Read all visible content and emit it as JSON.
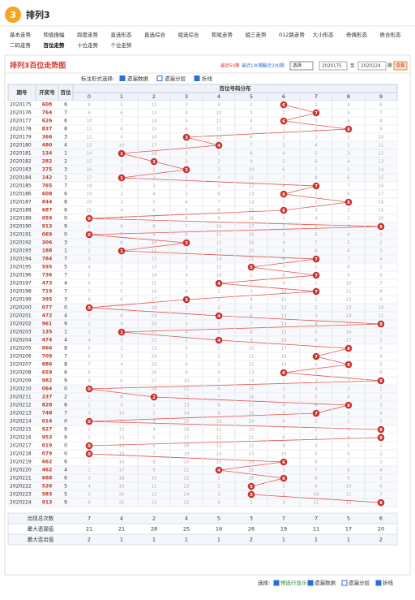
{
  "header": {
    "logo": "3",
    "title": "排列3"
  },
  "nav": [
    [
      "基本走势",
      "和值振幅",
      "跨度走势",
      "直选形态",
      "直选综合",
      "组选综合",
      "和尾走势",
      "组三走势",
      "012路走势",
      "大小形态",
      "奇偶形态",
      "质合形态"
    ],
    [
      "二码走势",
      "百位走势",
      "十位走势",
      "个位走势"
    ]
  ],
  "nav_active": "百位走势",
  "panel": {
    "title": "排列3百位走势图",
    "quick": [
      "最近50期",
      "最近100期",
      "最近200期"
    ],
    "select": "选择",
    "from": "2020175",
    "to_label": "至",
    "to": "2020224",
    "period_label": "期",
    "button": "查看",
    "mark_label": "标注形式选择:",
    "options": [
      "遗漏数据",
      "遗漏分层",
      "折线"
    ]
  },
  "table": {
    "headers": [
      "期号",
      "开奖号",
      "百位"
    ],
    "dist_title": "百位号码分布",
    "digits": [
      0,
      1,
      2,
      3,
      4,
      5,
      6,
      7,
      8,
      9
    ],
    "rows": [
      {
        "issue": "2020175",
        "draw": "608",
        "hundreds": 6,
        "miss": [
          8,
          5,
          12,
          3,
          9,
          2,
          null,
          1,
          4,
          6
        ]
      },
      {
        "issue": "2020176",
        "draw": "764",
        "hundreds": 7,
        "miss": [
          9,
          6,
          13,
          4,
          10,
          3,
          1,
          null,
          5,
          7
        ]
      },
      {
        "issue": "2020177",
        "draw": "626",
        "hundreds": 6,
        "miss": [
          10,
          7,
          14,
          5,
          11,
          4,
          null,
          1,
          6,
          8
        ]
      },
      {
        "issue": "2020178",
        "draw": "837",
        "hundreds": 8,
        "miss": [
          11,
          8,
          15,
          6,
          12,
          5,
          1,
          2,
          null,
          9
        ]
      },
      {
        "issue": "2020179",
        "draw": "366",
        "hundreds": 3,
        "miss": [
          12,
          9,
          16,
          null,
          13,
          6,
          2,
          3,
          1,
          10
        ]
      },
      {
        "issue": "2020180",
        "draw": "480",
        "hundreds": 4,
        "miss": [
          13,
          10,
          17,
          1,
          null,
          7,
          3,
          4,
          2,
          11
        ]
      },
      {
        "issue": "2020181",
        "draw": "134",
        "hundreds": 1,
        "miss": [
          14,
          null,
          18,
          2,
          1,
          8,
          4,
          5,
          3,
          12
        ]
      },
      {
        "issue": "2020182",
        "draw": "282",
        "hundreds": 2,
        "miss": [
          15,
          1,
          null,
          3,
          2,
          9,
          5,
          6,
          4,
          13
        ]
      },
      {
        "issue": "2020183",
        "draw": "375",
        "hundreds": 3,
        "miss": [
          16,
          2,
          1,
          null,
          3,
          10,
          6,
          7,
          5,
          14
        ]
      },
      {
        "issue": "2020184",
        "draw": "142",
        "hundreds": 1,
        "miss": [
          17,
          null,
          2,
          1,
          4,
          11,
          7,
          8,
          6,
          15
        ]
      },
      {
        "issue": "2020185",
        "draw": "765",
        "hundreds": 7,
        "miss": [
          18,
          1,
          3,
          2,
          5,
          12,
          8,
          null,
          7,
          16
        ]
      },
      {
        "issue": "2020186",
        "draw": "608",
        "hundreds": 6,
        "miss": [
          19,
          2,
          4,
          3,
          6,
          13,
          null,
          1,
          8,
          17
        ]
      },
      {
        "issue": "2020187",
        "draw": "844",
        "hundreds": 8,
        "miss": [
          20,
          3,
          5,
          4,
          7,
          14,
          1,
          2,
          null,
          18
        ]
      },
      {
        "issue": "2020188",
        "draw": "687",
        "hundreds": 6,
        "miss": [
          21,
          4,
          6,
          5,
          8,
          15,
          null,
          3,
          1,
          19
        ]
      },
      {
        "issue": "2020189",
        "draw": "059",
        "hundreds": 0,
        "miss": [
          null,
          5,
          7,
          6,
          9,
          16,
          1,
          4,
          2,
          20
        ]
      },
      {
        "issue": "2020190",
        "draw": "913",
        "hundreds": 9,
        "miss": [
          1,
          6,
          8,
          7,
          10,
          17,
          2,
          5,
          3,
          null
        ]
      },
      {
        "issue": "2020191",
        "draw": "069",
        "hundreds": 0,
        "miss": [
          null,
          7,
          9,
          8,
          11,
          18,
          3,
          6,
          4,
          1
        ]
      },
      {
        "issue": "2020192",
        "draw": "306",
        "hundreds": 3,
        "miss": [
          1,
          8,
          10,
          null,
          12,
          19,
          4,
          7,
          5,
          2
        ]
      },
      {
        "issue": "2020193",
        "draw": "188",
        "hundreds": 1,
        "miss": [
          2,
          null,
          11,
          1,
          13,
          20,
          5,
          8,
          6,
          3
        ]
      },
      {
        "issue": "2020194",
        "draw": "784",
        "hundreds": 7,
        "miss": [
          3,
          1,
          12,
          2,
          14,
          21,
          6,
          null,
          7,
          4
        ]
      },
      {
        "issue": "2020195",
        "draw": "595",
        "hundreds": 5,
        "miss": [
          4,
          2,
          13,
          3,
          15,
          null,
          7,
          1,
          8,
          5
        ]
      },
      {
        "issue": "2020196",
        "draw": "736",
        "hundreds": 7,
        "miss": [
          5,
          3,
          14,
          4,
          16,
          1,
          8,
          null,
          9,
          6
        ]
      },
      {
        "issue": "2020197",
        "draw": "473",
        "hundreds": 4,
        "miss": [
          6,
          4,
          15,
          5,
          null,
          2,
          9,
          1,
          10,
          7
        ]
      },
      {
        "issue": "2020198",
        "draw": "719",
        "hundreds": 7,
        "miss": [
          7,
          5,
          16,
          6,
          1,
          3,
          10,
          null,
          11,
          8
        ]
      },
      {
        "issue": "2020199",
        "draw": "395",
        "hundreds": 3,
        "miss": [
          8,
          6,
          17,
          null,
          2,
          4,
          11,
          1,
          12,
          9
        ]
      },
      {
        "issue": "2020200",
        "draw": "077",
        "hundreds": 0,
        "miss": [
          null,
          7,
          18,
          1,
          3,
          5,
          12,
          2,
          13,
          10
        ]
      },
      {
        "issue": "2020201",
        "draw": "472",
        "hundreds": 4,
        "miss": [
          1,
          8,
          19,
          2,
          null,
          6,
          13,
          3,
          14,
          11
        ]
      },
      {
        "issue": "2020202",
        "draw": "961",
        "hundreds": 9,
        "miss": [
          2,
          9,
          20,
          3,
          1,
          7,
          14,
          4,
          15,
          null
        ]
      },
      {
        "issue": "2020203",
        "draw": "135",
        "hundreds": 1,
        "miss": [
          3,
          null,
          21,
          4,
          2,
          8,
          15,
          5,
          16,
          1
        ]
      },
      {
        "issue": "2020204",
        "draw": "474",
        "hundreds": 4,
        "miss": [
          4,
          1,
          22,
          5,
          null,
          9,
          16,
          6,
          17,
          2
        ]
      },
      {
        "issue": "2020205",
        "draw": "866",
        "hundreds": 8,
        "miss": [
          5,
          2,
          23,
          6,
          1,
          10,
          17,
          7,
          null,
          3
        ]
      },
      {
        "issue": "2020206",
        "draw": "709",
        "hundreds": 7,
        "miss": [
          6,
          3,
          24,
          7,
          2,
          11,
          18,
          null,
          1,
          4
        ]
      },
      {
        "issue": "2020207",
        "draw": "886",
        "hundreds": 8,
        "miss": [
          7,
          4,
          25,
          8,
          3,
          12,
          19,
          1,
          null,
          5
        ]
      },
      {
        "issue": "2020208",
        "draw": "659",
        "hundreds": 6,
        "miss": [
          8,
          5,
          26,
          9,
          4,
          13,
          null,
          2,
          1,
          6
        ]
      },
      {
        "issue": "2020209",
        "draw": "982",
        "hundreds": 9,
        "miss": [
          9,
          6,
          27,
          10,
          5,
          14,
          1,
          3,
          2,
          null
        ]
      },
      {
        "issue": "2020210",
        "draw": "064",
        "hundreds": 0,
        "miss": [
          null,
          7,
          28,
          11,
          6,
          15,
          2,
          4,
          3,
          1
        ]
      },
      {
        "issue": "2020211",
        "draw": "237",
        "hundreds": 2,
        "miss": [
          1,
          8,
          null,
          12,
          7,
          16,
          3,
          5,
          4,
          2
        ]
      },
      {
        "issue": "2020212",
        "draw": "828",
        "hundreds": 8,
        "miss": [
          2,
          9,
          1,
          13,
          8,
          17,
          4,
          6,
          null,
          3
        ]
      },
      {
        "issue": "2020213",
        "draw": "748",
        "hundreds": 7,
        "miss": [
          3,
          10,
          2,
          14,
          9,
          18,
          5,
          null,
          1,
          4
        ]
      },
      {
        "issue": "2020214",
        "draw": "014",
        "hundreds": 0,
        "miss": [
          null,
          11,
          3,
          15,
          10,
          19,
          6,
          1,
          2,
          5
        ]
      },
      {
        "issue": "2020215",
        "draw": "927",
        "hundreds": 9,
        "miss": [
          1,
          12,
          4,
          16,
          11,
          20,
          7,
          2,
          3,
          null
        ]
      },
      {
        "issue": "2020216",
        "draw": "953",
        "hundreds": 9,
        "miss": [
          2,
          13,
          5,
          17,
          12,
          21,
          8,
          3,
          4,
          null
        ]
      },
      {
        "issue": "2020217",
        "draw": "019",
        "hundreds": 0,
        "miss": [
          null,
          14,
          6,
          18,
          13,
          22,
          9,
          4,
          5,
          1
        ]
      },
      {
        "issue": "2020218",
        "draw": "079",
        "hundreds": 0,
        "miss": [
          null,
          15,
          7,
          19,
          14,
          23,
          10,
          5,
          6,
          2
        ]
      },
      {
        "issue": "2020219",
        "draw": "662",
        "hundreds": 6,
        "miss": [
          1,
          16,
          8,
          20,
          15,
          24,
          null,
          6,
          7,
          3
        ]
      },
      {
        "issue": "2020220",
        "draw": "462",
        "hundreds": 4,
        "miss": [
          2,
          17,
          9,
          21,
          null,
          25,
          1,
          7,
          8,
          4
        ]
      },
      {
        "issue": "2020221",
        "draw": "688",
        "hundreds": 6,
        "miss": [
          3,
          18,
          10,
          22,
          1,
          26,
          null,
          8,
          9,
          5
        ]
      },
      {
        "issue": "2020222",
        "draw": "526",
        "hundreds": 5,
        "miss": [
          4,
          19,
          11,
          23,
          2,
          null,
          1,
          9,
          10,
          6
        ]
      },
      {
        "issue": "2020223",
        "draw": "583",
        "hundreds": 5,
        "miss": [
          5,
          20,
          12,
          24,
          3,
          null,
          2,
          10,
          11,
          7
        ]
      },
      {
        "issue": "2020224",
        "draw": "913",
        "hundreds": 9,
        "miss": [
          6,
          21,
          13,
          25,
          4,
          1,
          3,
          11,
          12,
          null
        ]
      }
    ],
    "stats": [
      {
        "label": "出现总次数",
        "values": [
          7,
          4,
          2,
          4,
          5,
          3,
          7,
          7,
          5,
          6
        ]
      },
      {
        "label": "最大遗漏值",
        "values": [
          21,
          21,
          28,
          25,
          16,
          26,
          19,
          11,
          17,
          20
        ]
      },
      {
        "label": "最大连出值",
        "values": [
          2,
          1,
          1,
          1,
          1,
          2,
          1,
          1,
          1,
          2
        ]
      }
    ]
  },
  "footer": {
    "label": "选择:",
    "options": [
      "预选行显示",
      "遗漏数据",
      "遗漏分层",
      "折线"
    ]
  }
}
